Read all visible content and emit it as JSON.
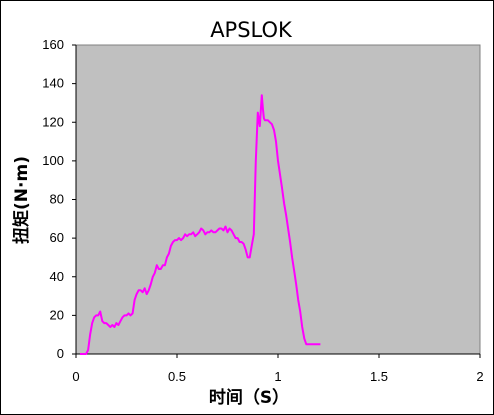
{
  "chart_data": {
    "type": "line",
    "title": "APSLOK",
    "xlabel": "时间（S）",
    "ylabel": "扭矩(N·m)",
    "xlim": [
      0,
      2
    ],
    "ylim": [
      0,
      160
    ],
    "x_ticks": [
      "0",
      "0.5",
      "1",
      "1.5",
      "2"
    ],
    "y_ticks": [
      "0",
      "20",
      "40",
      "60",
      "80",
      "100",
      "120",
      "140",
      "160"
    ],
    "plot_background": "#c0c0c0",
    "line_color": "#ff00ff",
    "grid": false,
    "legend": "none",
    "series": [
      {
        "x": [
          0.02,
          0.05,
          0.06,
          0.07,
          0.08,
          0.09,
          0.1,
          0.11,
          0.12,
          0.13,
          0.14,
          0.15,
          0.17,
          0.18,
          0.19,
          0.2,
          0.21,
          0.22,
          0.23,
          0.24,
          0.25,
          0.26,
          0.27,
          0.28,
          0.29,
          0.3,
          0.31,
          0.32,
          0.33,
          0.34,
          0.35,
          0.36,
          0.37,
          0.38,
          0.39,
          0.4,
          0.41,
          0.42,
          0.43,
          0.44,
          0.45,
          0.46,
          0.47,
          0.48,
          0.49,
          0.5,
          0.51,
          0.52,
          0.53,
          0.54,
          0.55,
          0.56,
          0.57,
          0.58,
          0.59,
          0.6,
          0.61,
          0.62,
          0.63,
          0.64,
          0.65,
          0.66,
          0.67,
          0.68,
          0.69,
          0.7,
          0.71,
          0.72,
          0.73,
          0.74,
          0.75,
          0.76,
          0.77,
          0.78,
          0.79,
          0.8,
          0.81,
          0.82,
          0.83,
          0.84,
          0.85,
          0.86,
          0.87,
          0.88,
          0.89,
          0.9,
          0.91,
          0.92,
          0.925,
          0.93,
          0.935,
          0.94,
          0.945,
          0.95,
          0.96,
          0.97,
          0.98,
          0.99,
          1.0,
          1.01,
          1.02,
          1.03,
          1.04,
          1.05,
          1.06,
          1.07,
          1.08,
          1.09,
          1.1,
          1.11,
          1.12,
          1.13,
          1.14,
          1.15,
          1.16,
          1.17,
          1.18,
          1.19,
          1.2,
          1.21
        ],
        "y": [
          0,
          0,
          2,
          10,
          16,
          19,
          20,
          20,
          22,
          17,
          16,
          16,
          14,
          15,
          14,
          16,
          15,
          17,
          19,
          20,
          20,
          21,
          20,
          21,
          28,
          31,
          33,
          33,
          32,
          34,
          31,
          33,
          36,
          40,
          42,
          46,
          44,
          44,
          46,
          46,
          50,
          52,
          56,
          58,
          59,
          59,
          60,
          59,
          60,
          62,
          61,
          62,
          62,
          63,
          61,
          62,
          63,
          65,
          64,
          62,
          63,
          63,
          64,
          63,
          63,
          64,
          65,
          65,
          64,
          66,
          63,
          65,
          64,
          62,
          60,
          60,
          58,
          58,
          57,
          54,
          50,
          50,
          56,
          62,
          100,
          125,
          118,
          134,
          127,
          122,
          121,
          121,
          121,
          121,
          120,
          119,
          116,
          110,
          100,
          93,
          86,
          78,
          72,
          65,
          58,
          50,
          43,
          36,
          28,
          22,
          14,
          8,
          5,
          5,
          5,
          5,
          5,
          5,
          5,
          5
        ],
        "note": ""
      }
    ]
  }
}
